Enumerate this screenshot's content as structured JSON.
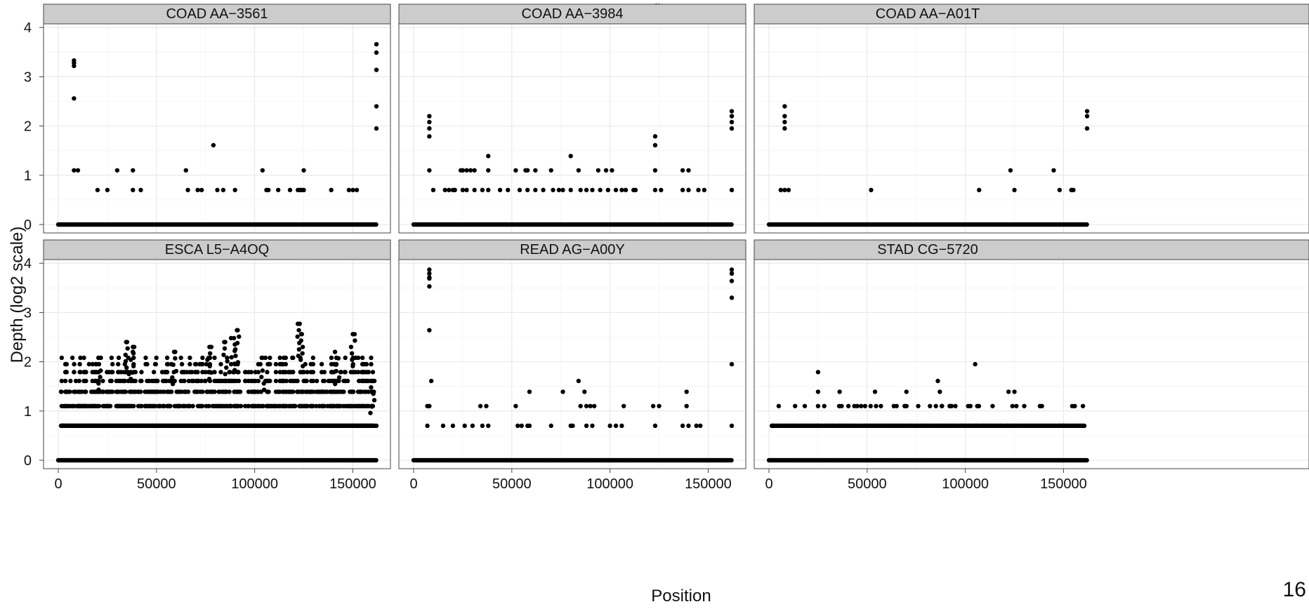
{
  "page": {
    "corner_label": "16",
    "overhead_title_fragment": "g"
  },
  "chart_data": {
    "type": "scatter",
    "layout": "faceted 2 rows x 3 columns, shared axes",
    "xlabel": "Position",
    "ylabel": "Depth (log2 scale)",
    "xlim": [
      0,
      162000
    ],
    "ylim": [
      0,
      4
    ],
    "x_ticks": [
      0,
      50000,
      100000,
      150000
    ],
    "x_tick_labels": [
      "0",
      "50000",
      "100000",
      "150000"
    ],
    "y_ticks": [
      0,
      1,
      2,
      3,
      4
    ],
    "y_tick_labels": [
      "0",
      "1",
      "2",
      "3",
      "4"
    ],
    "grid": true,
    "colors": {
      "points": "#000000",
      "strip": "#cccccc",
      "grid": "#e6e6e6"
    },
    "baseline": {
      "y": 0,
      "x_range": [
        0,
        162000
      ],
      "note": "dense continuous run of points at depth 0"
    },
    "facets": [
      {
        "label": "COAD AA−3561",
        "points": [
          [
            8000,
            3.33
          ],
          [
            8000,
            3.28
          ],
          [
            8000,
            3.22
          ],
          [
            8000,
            2.56
          ],
          [
            8000,
            1.1
          ],
          [
            10000,
            1.1
          ],
          [
            20000,
            0.7
          ],
          [
            25000,
            0.7
          ],
          [
            30000,
            1.1
          ],
          [
            38000,
            1.1
          ],
          [
            38000,
            0.7
          ],
          [
            42000,
            0.7
          ],
          [
            65000,
            1.1
          ],
          [
            66000,
            0.7
          ],
          [
            71000,
            0.7
          ],
          [
            73000,
            0.7
          ],
          [
            79000,
            1.61
          ],
          [
            81000,
            0.7
          ],
          [
            84000,
            0.7
          ],
          [
            90000,
            0.7
          ],
          [
            104000,
            1.1
          ],
          [
            106000,
            0.7
          ],
          [
            107000,
            0.7
          ],
          [
            112000,
            0.7
          ],
          [
            118000,
            0.7
          ],
          [
            122000,
            0.7
          ],
          [
            123000,
            0.7
          ],
          [
            124000,
            0.7
          ],
          [
            125000,
            1.1
          ],
          [
            125000,
            0.7
          ],
          [
            139000,
            0.7
          ],
          [
            148000,
            0.7
          ],
          [
            150000,
            0.7
          ],
          [
            152000,
            0.7
          ],
          [
            162000,
            3.66
          ],
          [
            162000,
            3.49
          ],
          [
            162000,
            3.14
          ],
          [
            162000,
            2.4
          ],
          [
            162000,
            1.95
          ]
        ]
      },
      {
        "label": "COAD AA−3984",
        "points": [
          [
            8000,
            2.2
          ],
          [
            8000,
            2.08
          ],
          [
            8000,
            1.95
          ],
          [
            8000,
            1.79
          ],
          [
            8000,
            1.1
          ],
          [
            10000,
            0.7
          ],
          [
            16000,
            0.7
          ],
          [
            18000,
            0.7
          ],
          [
            20000,
            0.7
          ],
          [
            21000,
            0.7
          ],
          [
            24000,
            1.1
          ],
          [
            25000,
            1.1
          ],
          [
            25000,
            0.7
          ],
          [
            27000,
            1.1
          ],
          [
            27000,
            0.7
          ],
          [
            29000,
            1.1
          ],
          [
            31000,
            1.1
          ],
          [
            31000,
            0.7
          ],
          [
            35000,
            0.7
          ],
          [
            38000,
            1.39
          ],
          [
            38000,
            1.1
          ],
          [
            38000,
            0.7
          ],
          [
            44000,
            0.7
          ],
          [
            48000,
            0.7
          ],
          [
            52000,
            1.1
          ],
          [
            54000,
            0.7
          ],
          [
            57000,
            1.1
          ],
          [
            58000,
            1.1
          ],
          [
            58000,
            0.7
          ],
          [
            62000,
            1.1
          ],
          [
            62000,
            0.7
          ],
          [
            66000,
            0.7
          ],
          [
            70000,
            1.1
          ],
          [
            71000,
            0.7
          ],
          [
            74000,
            0.7
          ],
          [
            76000,
            0.7
          ],
          [
            80000,
            1.39
          ],
          [
            80000,
            0.7
          ],
          [
            84000,
            1.1
          ],
          [
            85000,
            0.7
          ],
          [
            88000,
            0.7
          ],
          [
            91000,
            0.7
          ],
          [
            94000,
            1.1
          ],
          [
            95000,
            0.7
          ],
          [
            98000,
            1.1
          ],
          [
            99000,
            0.7
          ],
          [
            101000,
            1.1
          ],
          [
            103000,
            0.7
          ],
          [
            106000,
            0.7
          ],
          [
            108000,
            0.7
          ],
          [
            112000,
            0.7
          ],
          [
            113000,
            0.7
          ],
          [
            123000,
            1.79
          ],
          [
            123000,
            1.61
          ],
          [
            123000,
            1.1
          ],
          [
            123000,
            0.7
          ],
          [
            126000,
            0.7
          ],
          [
            137000,
            1.1
          ],
          [
            137000,
            0.7
          ],
          [
            140000,
            1.1
          ],
          [
            140000,
            0.7
          ],
          [
            145000,
            0.7
          ],
          [
            148000,
            0.7
          ],
          [
            162000,
            2.3
          ],
          [
            162000,
            2.2
          ],
          [
            162000,
            2.08
          ],
          [
            162000,
            1.95
          ],
          [
            162000,
            0.7
          ]
        ]
      },
      {
        "label": "COAD AA−A01T",
        "points": [
          [
            6000,
            0.7
          ],
          [
            8000,
            2.4
          ],
          [
            8000,
            2.2
          ],
          [
            8000,
            2.08
          ],
          [
            8000,
            1.95
          ],
          [
            8000,
            0.7
          ],
          [
            10000,
            0.7
          ],
          [
            52000,
            0.7
          ],
          [
            107000,
            0.7
          ],
          [
            123000,
            1.1
          ],
          [
            125000,
            0.7
          ],
          [
            145000,
            1.1
          ],
          [
            148000,
            0.7
          ],
          [
            154000,
            0.7
          ],
          [
            155000,
            0.7
          ],
          [
            162000,
            2.3
          ],
          [
            162000,
            2.2
          ],
          [
            162000,
            1.95
          ]
        ]
      },
      {
        "label": "ESCA L5−A4OQ",
        "generated": true,
        "seed": 101,
        "density": 115,
        "levels": [
          0.7,
          1.1,
          1.39,
          1.61,
          1.79,
          1.95,
          2.08
        ],
        "clusters": [
          [
            21000,
            2.08
          ],
          [
            35000,
            2.4
          ],
          [
            38000,
            2.3
          ],
          [
            59000,
            2.2
          ],
          [
            77000,
            2.3
          ],
          [
            85000,
            2.4
          ],
          [
            89000,
            2.48
          ],
          [
            91000,
            2.64
          ],
          [
            104000,
            2.08
          ],
          [
            122000,
            2.77
          ],
          [
            124000,
            2.56
          ],
          [
            142000,
            2.2
          ],
          [
            150000,
            2.56
          ],
          [
            160000,
            1.61
          ]
        ],
        "points": [
          [
            1500,
            1.39
          ],
          [
            2500,
            0.7
          ],
          [
            3500,
            1.1
          ],
          [
            7000,
            1.1
          ],
          [
            14000,
            1.39
          ],
          [
            35000,
            2.4
          ],
          [
            38000,
            2.3
          ],
          [
            38000,
            2.2
          ],
          [
            59000,
            2.2
          ],
          [
            77000,
            2.3
          ],
          [
            85000,
            2.4
          ],
          [
            88000,
            2.48
          ],
          [
            91000,
            2.64
          ],
          [
            104000,
            2.08
          ],
          [
            122000,
            2.77
          ],
          [
            124000,
            2.56
          ],
          [
            150000,
            2.56
          ],
          [
            160000,
            1.61
          ],
          [
            162000,
            0.7
          ]
        ]
      },
      {
        "label": "READ AG−A00Y",
        "points": [
          [
            7000,
            1.1
          ],
          [
            8000,
            3.87
          ],
          [
            8000,
            3.79
          ],
          [
            8000,
            3.71
          ],
          [
            8000,
            3.69
          ],
          [
            8000,
            3.53
          ],
          [
            8000,
            2.64
          ],
          [
            8000,
            1.1
          ],
          [
            9000,
            1.61
          ],
          [
            7000,
            0.7
          ],
          [
            15000,
            0.7
          ],
          [
            20000,
            0.7
          ],
          [
            26000,
            0.7
          ],
          [
            30000,
            0.7
          ],
          [
            34000,
            1.1
          ],
          [
            37000,
            1.1
          ],
          [
            35000,
            0.7
          ],
          [
            38000,
            0.7
          ],
          [
            52000,
            1.1
          ],
          [
            53000,
            0.7
          ],
          [
            55000,
            0.7
          ],
          [
            58000,
            0.7
          ],
          [
            59000,
            1.39
          ],
          [
            59000,
            0.7
          ],
          [
            70000,
            0.7
          ],
          [
            76000,
            1.39
          ],
          [
            80000,
            0.7
          ],
          [
            81000,
            0.7
          ],
          [
            84000,
            1.61
          ],
          [
            85000,
            1.1
          ],
          [
            87000,
            1.39
          ],
          [
            88000,
            1.1
          ],
          [
            88000,
            0.7
          ],
          [
            90000,
            1.1
          ],
          [
            92000,
            1.1
          ],
          [
            91000,
            0.7
          ],
          [
            100000,
            0.7
          ],
          [
            103000,
            0.7
          ],
          [
            106000,
            0.7
          ],
          [
            107000,
            1.1
          ],
          [
            122000,
            1.1
          ],
          [
            123000,
            0.7
          ],
          [
            125000,
            1.1
          ],
          [
            137000,
            0.7
          ],
          [
            139000,
            1.39
          ],
          [
            139000,
            1.1
          ],
          [
            140000,
            0.7
          ],
          [
            144000,
            0.7
          ],
          [
            146000,
            0.7
          ],
          [
            162000,
            3.87
          ],
          [
            162000,
            3.79
          ],
          [
            162000,
            3.64
          ],
          [
            162000,
            3.3
          ],
          [
            162000,
            1.95
          ],
          [
            162000,
            0.7
          ]
        ]
      },
      {
        "label": "STAD CG−5720",
        "generated": true,
        "seed": 202,
        "density": 58,
        "levels": [
          0.7,
          1.1
        ],
        "clusters": [],
        "points": [
          [
            2000,
            0.7
          ],
          [
            12000,
            0.7
          ],
          [
            18000,
            0.7
          ],
          [
            21000,
            0.7
          ],
          [
            25000,
            1.79
          ],
          [
            25000,
            1.39
          ],
          [
            25000,
            1.1
          ],
          [
            25000,
            0.7
          ],
          [
            36000,
            1.39
          ],
          [
            37000,
            1.1
          ],
          [
            45000,
            1.1
          ],
          [
            54000,
            1.39
          ],
          [
            57000,
            1.1
          ],
          [
            70000,
            1.39
          ],
          [
            76000,
            1.1
          ],
          [
            82000,
            1.1
          ],
          [
            86000,
            1.61
          ],
          [
            87000,
            1.39
          ],
          [
            85000,
            1.1
          ],
          [
            88000,
            1.1
          ],
          [
            92000,
            1.1
          ],
          [
            93000,
            1.1
          ],
          [
            105000,
            1.95
          ],
          [
            109000,
            0.7
          ],
          [
            122000,
            1.39
          ],
          [
            125000,
            1.39
          ],
          [
            124000,
            1.1
          ],
          [
            126000,
            1.1
          ],
          [
            130000,
            1.1
          ],
          [
            138000,
            1.1
          ],
          [
            139000,
            1.1
          ],
          [
            148000,
            0.7
          ],
          [
            150000,
            0.7
          ]
        ]
      }
    ]
  }
}
